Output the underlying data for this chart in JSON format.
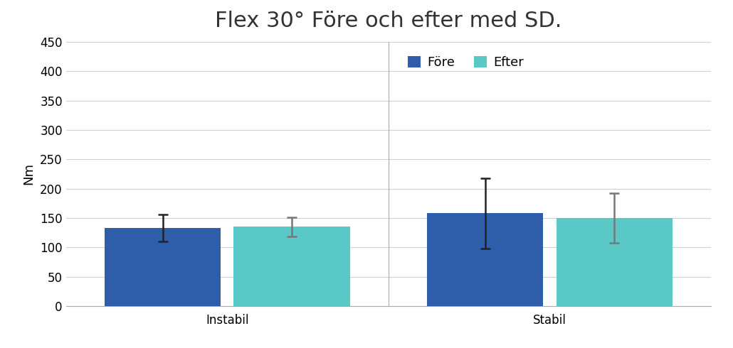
{
  "title": "Flex 30° Före och efter med SD.",
  "ylabel": "Nm",
  "groups": [
    "Instabil",
    "Stabil"
  ],
  "series": [
    "Före",
    "Efter"
  ],
  "values": {
    "Före": [
      133,
      158
    ],
    "Efter": [
      135,
      150
    ]
  },
  "errors": {
    "Före": [
      23,
      60
    ],
    "Efter": [
      16,
      42
    ]
  },
  "bar_colors": {
    "Före": "#2E5EAA",
    "Efter": "#5BC8C8"
  },
  "error_colors": {
    "Före": "#222222",
    "Efter": "#777777"
  },
  "ylim": [
    0,
    450
  ],
  "yticks": [
    0,
    50,
    100,
    150,
    200,
    250,
    300,
    350,
    400,
    450
  ],
  "bar_width": 0.18,
  "group_positions": [
    0.25,
    0.75
  ],
  "xlim": [
    0.0,
    1.0
  ],
  "title_fontsize": 22,
  "axis_fontsize": 13,
  "tick_fontsize": 12,
  "legend_fontsize": 13,
  "background_color": "#ffffff",
  "grid_color": "#d0d0d0"
}
